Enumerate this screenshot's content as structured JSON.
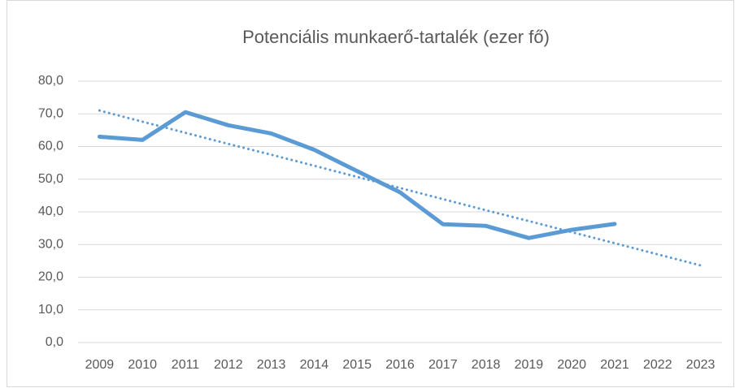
{
  "chart_data": {
    "type": "line",
    "title": "Potenciális munkaerő-tartalék (ezer fő)",
    "categories": [
      "2009",
      "2010",
      "2011",
      "2012",
      "2013",
      "2014",
      "2015",
      "2016",
      "2017",
      "2018",
      "2019",
      "2020",
      "2021",
      "2022",
      "2023"
    ],
    "series": [
      {
        "color": "#5b9bd5",
        "style": "solid",
        "values": [
          63.0,
          62.0,
          70.5,
          66.5,
          64.0,
          59.0,
          52.5,
          46.0,
          36.2,
          35.7,
          32.0,
          34.5,
          36.3,
          null,
          null
        ]
      },
      {
        "color": "#5b9bd5",
        "style": "dotted",
        "values": [
          71.0,
          67.6,
          64.2,
          60.8,
          57.5,
          54.1,
          50.7,
          47.3,
          43.9,
          40.5,
          37.2,
          33.8,
          30.4,
          27.0,
          23.6
        ]
      }
    ],
    "ylim": [
      0,
      80
    ],
    "yticks": [
      {
        "value": 0,
        "label": "0,0"
      },
      {
        "value": 10,
        "label": "10,0"
      },
      {
        "value": 20,
        "label": "20,0"
      },
      {
        "value": 30,
        "label": "30,0"
      },
      {
        "value": 40,
        "label": "40,0"
      },
      {
        "value": 50,
        "label": "50,0"
      },
      {
        "value": 60,
        "label": "60,0"
      },
      {
        "value": 70,
        "label": "70,0"
      },
      {
        "value": 80,
        "label": "80,0"
      }
    ],
    "grid": true
  }
}
